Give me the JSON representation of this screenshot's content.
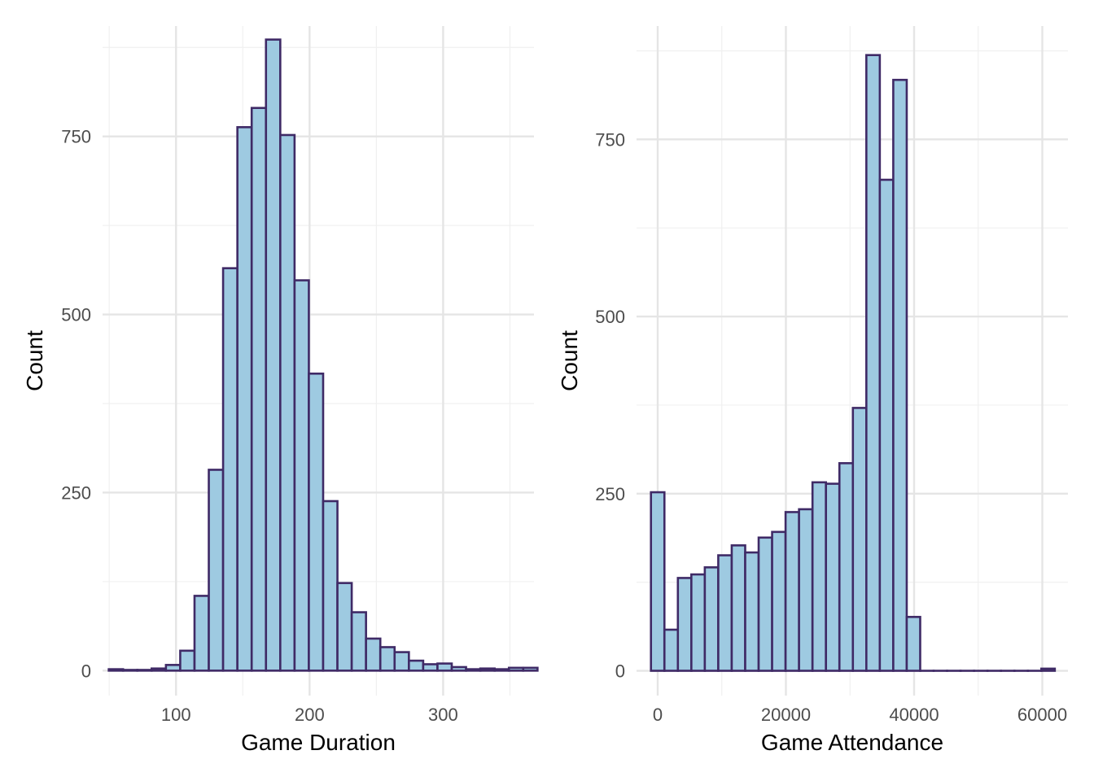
{
  "chart_data": [
    {
      "type": "bar",
      "subtype": "histogram",
      "title": "",
      "xlabel": "Game Duration",
      "ylabel": "Count",
      "x_ticks": [
        100,
        200,
        300
      ],
      "y_ticks": [
        0,
        250,
        500,
        750
      ],
      "xlim": [
        45,
        368
      ],
      "ylim": [
        -35,
        905
      ],
      "grid": true,
      "bin_width": 10.7,
      "bin_centers": [
        55,
        65.7,
        76.4,
        87.1,
        97.8,
        108.5,
        119.2,
        129.9,
        140.6,
        151.3,
        162.0,
        172.7,
        183.4,
        194.1,
        204.8,
        215.5,
        226.2,
        236.9,
        247.6,
        258.3,
        269.0,
        279.7,
        290.4,
        301.1,
        311.8,
        322.5,
        333.2,
        343.9,
        354.6,
        365.3
      ],
      "values": [
        2,
        1,
        1,
        3,
        8,
        28,
        105,
        282,
        565,
        763,
        790,
        886,
        752,
        548,
        417,
        238,
        123,
        82,
        45,
        33,
        26,
        14,
        9,
        10,
        5,
        2,
        3,
        2,
        4,
        4
      ]
    },
    {
      "type": "bar",
      "subtype": "histogram",
      "title": "",
      "xlabel": "Game Attendance",
      "ylabel": "Count",
      "x_ticks": [
        0,
        20000,
        40000,
        60000
      ],
      "y_ticks": [
        0,
        250,
        500,
        750
      ],
      "xlim": [
        -3300,
        64000
      ],
      "ylim": [
        -35,
        910
      ],
      "grid": true,
      "bin_width": 2100,
      "bin_centers": [
        0,
        2100,
        4200,
        6300,
        8400,
        10500,
        12600,
        14700,
        16800,
        18900,
        21000,
        23100,
        25200,
        27300,
        29400,
        31500,
        33600,
        35700,
        37800,
        39900,
        42000,
        44100,
        46200,
        48300,
        50400,
        52500,
        54600,
        56700,
        58800,
        60900
      ],
      "values": [
        252,
        58,
        131,
        136,
        146,
        163,
        177,
        167,
        188,
        196,
        224,
        228,
        266,
        264,
        293,
        371,
        869,
        693,
        834,
        76,
        0,
        0,
        0,
        0,
        0,
        0,
        0,
        0,
        0,
        3
      ]
    }
  ],
  "style": {
    "bar_fill": "#9ecae1",
    "bar_stroke": "#3f2a66",
    "grid_major": "#e5e5e5",
    "grid_minor": "#f0f0f0",
    "text_color": "#4d4d4d"
  }
}
